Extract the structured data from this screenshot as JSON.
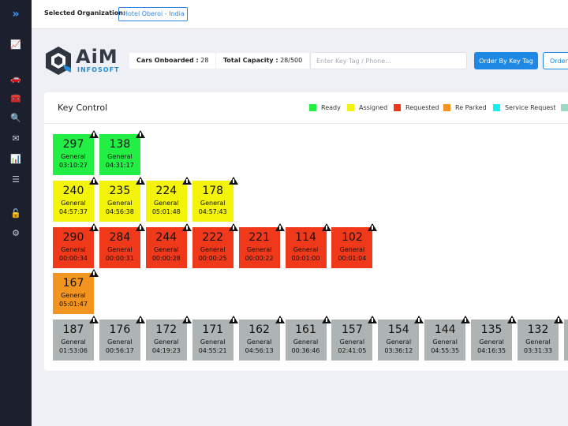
{
  "sidebar": {
    "icons": [
      {
        "name": "expand-icon",
        "glyph": "»"
      },
      {
        "name": "chart-line-icon",
        "glyph": "📈"
      },
      {
        "name": "car-icon",
        "glyph": "🚗"
      },
      {
        "name": "toolbox-icon",
        "glyph": "🧰"
      },
      {
        "name": "search-icon",
        "glyph": "🔍"
      },
      {
        "name": "mail-icon",
        "glyph": "✉"
      },
      {
        "name": "bar-chart-icon",
        "glyph": "📊"
      },
      {
        "name": "list-icon",
        "glyph": "☰"
      },
      {
        "name": "unlock-icon",
        "glyph": "🔓"
      },
      {
        "name": "gears-icon",
        "glyph": "⚙"
      }
    ]
  },
  "header": {
    "org_label": "Selected Organization:",
    "org_value": "Hotel Oberoi - India"
  },
  "brand": {
    "logo_main": "AiM",
    "logo_sub": "INFOSOFT"
  },
  "stats": {
    "cars_onboarded_label": "Cars Onboarded :",
    "cars_onboarded_value": "28",
    "total_capacity_label": "Total Capacity :",
    "total_capacity_value": "28/500"
  },
  "search": {
    "placeholder": "Enter Key Tag / Phone..."
  },
  "buttons": {
    "order_by_key_tag": "Order By Key Tag",
    "order_secondary": "Order"
  },
  "panel": {
    "title": "Key Control"
  },
  "legend": [
    {
      "label": "Ready",
      "color": "#22ee44"
    },
    {
      "label": "Assigned",
      "color": "#f4f40a"
    },
    {
      "label": "Requested",
      "color": "#f0391a"
    },
    {
      "label": "Re Parked",
      "color": "#f39320"
    },
    {
      "label": "Service Request",
      "color": "#14f0f0"
    },
    {
      "label": "",
      "color": "#9fd8c4"
    }
  ],
  "status_colors": {
    "ready": "#22ee44",
    "assigned": "#f4f40a",
    "requested": "#f0391a",
    "reparked": "#f39320",
    "parked": "#aeb4b4"
  },
  "tile_rows": [
    [
      {
        "num": "297",
        "type": "General",
        "time": "03:10:27",
        "status": "ready"
      },
      {
        "num": "138",
        "type": "General",
        "time": "04:31:17",
        "status": "ready"
      }
    ],
    [
      {
        "num": "240",
        "type": "General",
        "time": "04:57:37",
        "status": "assigned"
      },
      {
        "num": "235",
        "type": "General",
        "time": "04:56:38",
        "status": "assigned"
      },
      {
        "num": "224",
        "type": "General",
        "time": "05:01:48",
        "status": "assigned"
      },
      {
        "num": "178",
        "type": "General",
        "time": "04:57:43",
        "status": "assigned"
      }
    ],
    [
      {
        "num": "290",
        "type": "General",
        "time": "00:00:34",
        "status": "requested"
      },
      {
        "num": "284",
        "type": "General",
        "time": "00:00:31",
        "status": "requested"
      },
      {
        "num": "244",
        "type": "General",
        "time": "00:00:28",
        "status": "requested"
      },
      {
        "num": "222",
        "type": "General",
        "time": "00:00:25",
        "status": "requested"
      },
      {
        "num": "221",
        "type": "General",
        "time": "00:00:22",
        "status": "requested"
      },
      {
        "num": "114",
        "type": "General",
        "time": "00:01:00",
        "status": "requested"
      },
      {
        "num": "102",
        "type": "General",
        "time": "00:01:04",
        "status": "requested"
      }
    ],
    [
      {
        "num": "167",
        "type": "General",
        "time": "05:01:47",
        "status": "reparked"
      }
    ],
    [
      {
        "num": "187",
        "type": "General",
        "time": "01:53:06",
        "status": "parked"
      },
      {
        "num": "176",
        "type": "General",
        "time": "00:56:17",
        "status": "parked"
      },
      {
        "num": "172",
        "type": "General",
        "time": "04:19:23",
        "status": "parked"
      },
      {
        "num": "171",
        "type": "General",
        "time": "04:55:21",
        "status": "parked"
      },
      {
        "num": "162",
        "type": "General",
        "time": "04:56:13",
        "status": "parked"
      },
      {
        "num": "161",
        "type": "General",
        "time": "00:36:46",
        "status": "parked"
      },
      {
        "num": "157",
        "type": "General",
        "time": "02:41:05",
        "status": "parked"
      },
      {
        "num": "154",
        "type": "General",
        "time": "03:36:12",
        "status": "parked"
      },
      {
        "num": "144",
        "type": "General",
        "time": "04:55:35",
        "status": "parked"
      },
      {
        "num": "135",
        "type": "General",
        "time": "04:16:35",
        "status": "parked"
      },
      {
        "num": "132",
        "type": "General",
        "time": "03:31:33",
        "status": "parked"
      },
      {
        "num": "",
        "type": "",
        "time": "",
        "status": "parked"
      }
    ]
  ]
}
